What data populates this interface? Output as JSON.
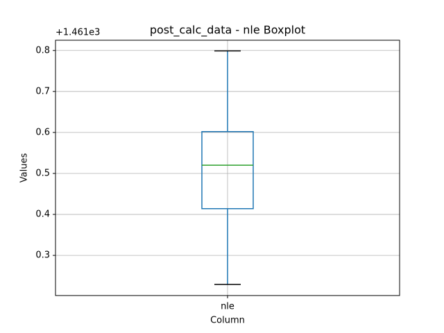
{
  "chart_data": {
    "type": "box",
    "title": "post_calc_data - nle Boxplot",
    "xlabel": "Column",
    "ylabel": "Values",
    "offset_text": "+1.461e3",
    "categories": [
      "nle"
    ],
    "boxes": [
      {
        "whislo": 0.229,
        "q1": 0.414,
        "med": 0.52,
        "q3": 0.602,
        "whishi": 0.799
      }
    ],
    "box_color": "#1f77b4",
    "median_color": "#2ca02c",
    "cap_color": "#000000",
    "ylim": [
      0.202,
      0.825
    ],
    "yticks": [
      0.3,
      0.4,
      0.5,
      0.6,
      0.7,
      0.8
    ],
    "grid": true
  }
}
